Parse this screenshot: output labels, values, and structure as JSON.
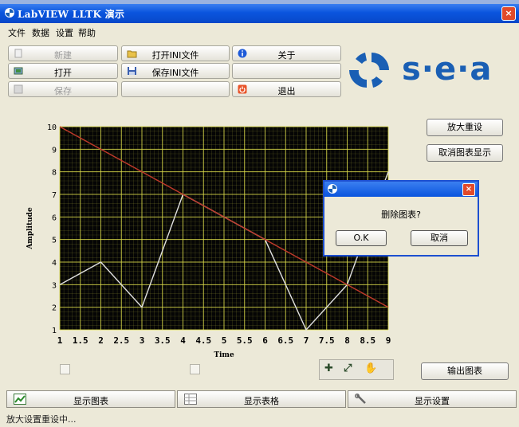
{
  "window": {
    "title": "LabVIEW LLTK 演示",
    "close_label": "×"
  },
  "menu": [
    "文件",
    "数据",
    "设置",
    "帮助"
  ],
  "toolbar": {
    "new_label": "新建",
    "open_label": "打开",
    "save_label": "保存",
    "open_ini_label": "打开INI文件",
    "save_ini_label": "保存INI文件",
    "about_label": "关于",
    "exit_label": "退出"
  },
  "logo": {
    "text": "s·e·a",
    "color": "#1a5fb4"
  },
  "side": {
    "zoom_reset_label": "放大重设",
    "cancel_display_label": "取消图表显示",
    "export_label": "输出图表"
  },
  "tabs": [
    {
      "label": "显示图表",
      "icon": "chart-icon"
    },
    {
      "label": "显示表格",
      "icon": "table-icon"
    },
    {
      "label": "显示设置",
      "icon": "wrench-icon"
    }
  ],
  "status": "放大设置重设中...",
  "dialog": {
    "message": "删除图表?",
    "ok_label": "O.K",
    "cancel_label": "取消",
    "close_label": "×"
  },
  "chart_data": {
    "type": "line",
    "xlabel": "Time",
    "ylabel": "Amplitude",
    "xlim": [
      1,
      9
    ],
    "ylim": [
      1,
      10
    ],
    "xticks": [
      "1",
      "1.5",
      "2",
      "2.5",
      "3",
      "3.5",
      "4",
      "4.5",
      "5",
      "5.5",
      "6",
      "6.5",
      "7",
      "7.5",
      "8",
      "8.5",
      "9"
    ],
    "yticks": [
      "1",
      "2",
      "3",
      "4",
      "5",
      "6",
      "7",
      "8",
      "9",
      "10"
    ],
    "grid": true,
    "colors": {
      "background": "#050505",
      "grid": "#d8d84a",
      "series_1": "#e0e0e0",
      "series_2": "#c0392b"
    },
    "series": [
      {
        "x": [
          1,
          2,
          3,
          4,
          5,
          6,
          7,
          8,
          9
        ],
        "y": [
          3,
          4,
          2,
          7,
          6,
          5,
          1,
          3,
          8
        ]
      },
      {
        "x": [
          1,
          9
        ],
        "y": [
          10,
          2
        ]
      }
    ]
  }
}
